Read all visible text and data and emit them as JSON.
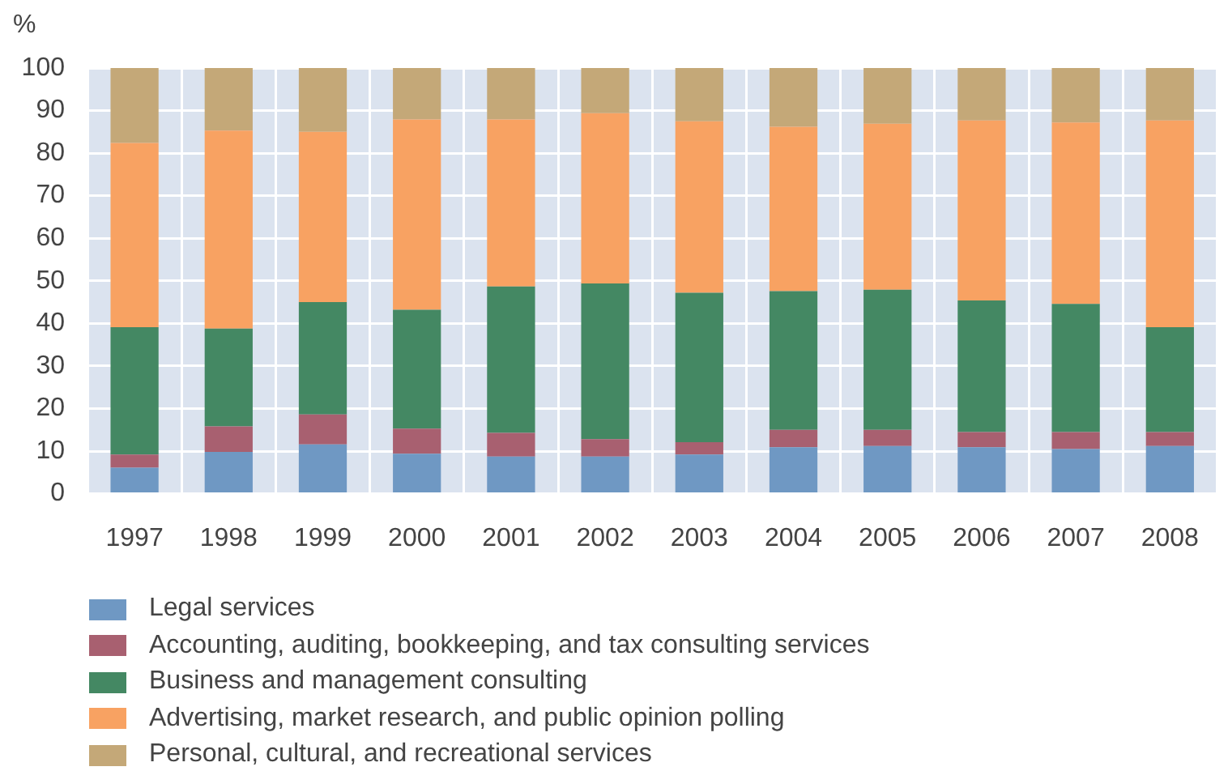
{
  "chart_data": {
    "type": "bar",
    "ylabel": "%",
    "stacked": true,
    "grid": true,
    "legend": "bottom",
    "categories": [
      "1997",
      "1998",
      "1999",
      "2000",
      "2001",
      "2002",
      "2003",
      "2004",
      "2005",
      "2006",
      "2007",
      "2008"
    ],
    "ylim": [
      0,
      100
    ],
    "yticks": [
      0,
      10,
      20,
      30,
      40,
      50,
      60,
      70,
      80,
      90,
      100
    ],
    "series": [
      {
        "name": "Legal services",
        "color": "#6f98c3",
        "values": [
          6.1,
          9.8,
          11.6,
          9.4,
          8.7,
          8.7,
          9.2,
          10.9,
          11.2,
          10.9,
          10.5,
          11.2
        ]
      },
      {
        "name": "Accounting, auditing, bookkeeping, and tax consulting services",
        "color": "#a86070",
        "values": [
          3.1,
          6.0,
          7.0,
          5.9,
          5.6,
          4.1,
          2.9,
          4.1,
          3.8,
          3.6,
          4.0,
          3.3
        ]
      },
      {
        "name": "Business and management consulting",
        "color": "#448863",
        "values": [
          29.9,
          23.0,
          26.4,
          27.9,
          34.4,
          36.6,
          35.1,
          32.6,
          32.9,
          30.9,
          30.1,
          24.6
        ]
      },
      {
        "name": "Advertising, market research, and public opinion polling",
        "color": "#f8a262",
        "values": [
          43.3,
          46.5,
          40.0,
          44.7,
          39.2,
          40.0,
          40.3,
          38.6,
          39.0,
          42.3,
          42.6,
          48.6
        ]
      },
      {
        "name": "Personal, cultural, and recreational services",
        "color": "#c4a878",
        "values": [
          17.6,
          14.7,
          15.0,
          12.1,
          12.1,
          10.6,
          12.5,
          13.8,
          13.1,
          12.3,
          12.8,
          12.3
        ]
      }
    ]
  }
}
